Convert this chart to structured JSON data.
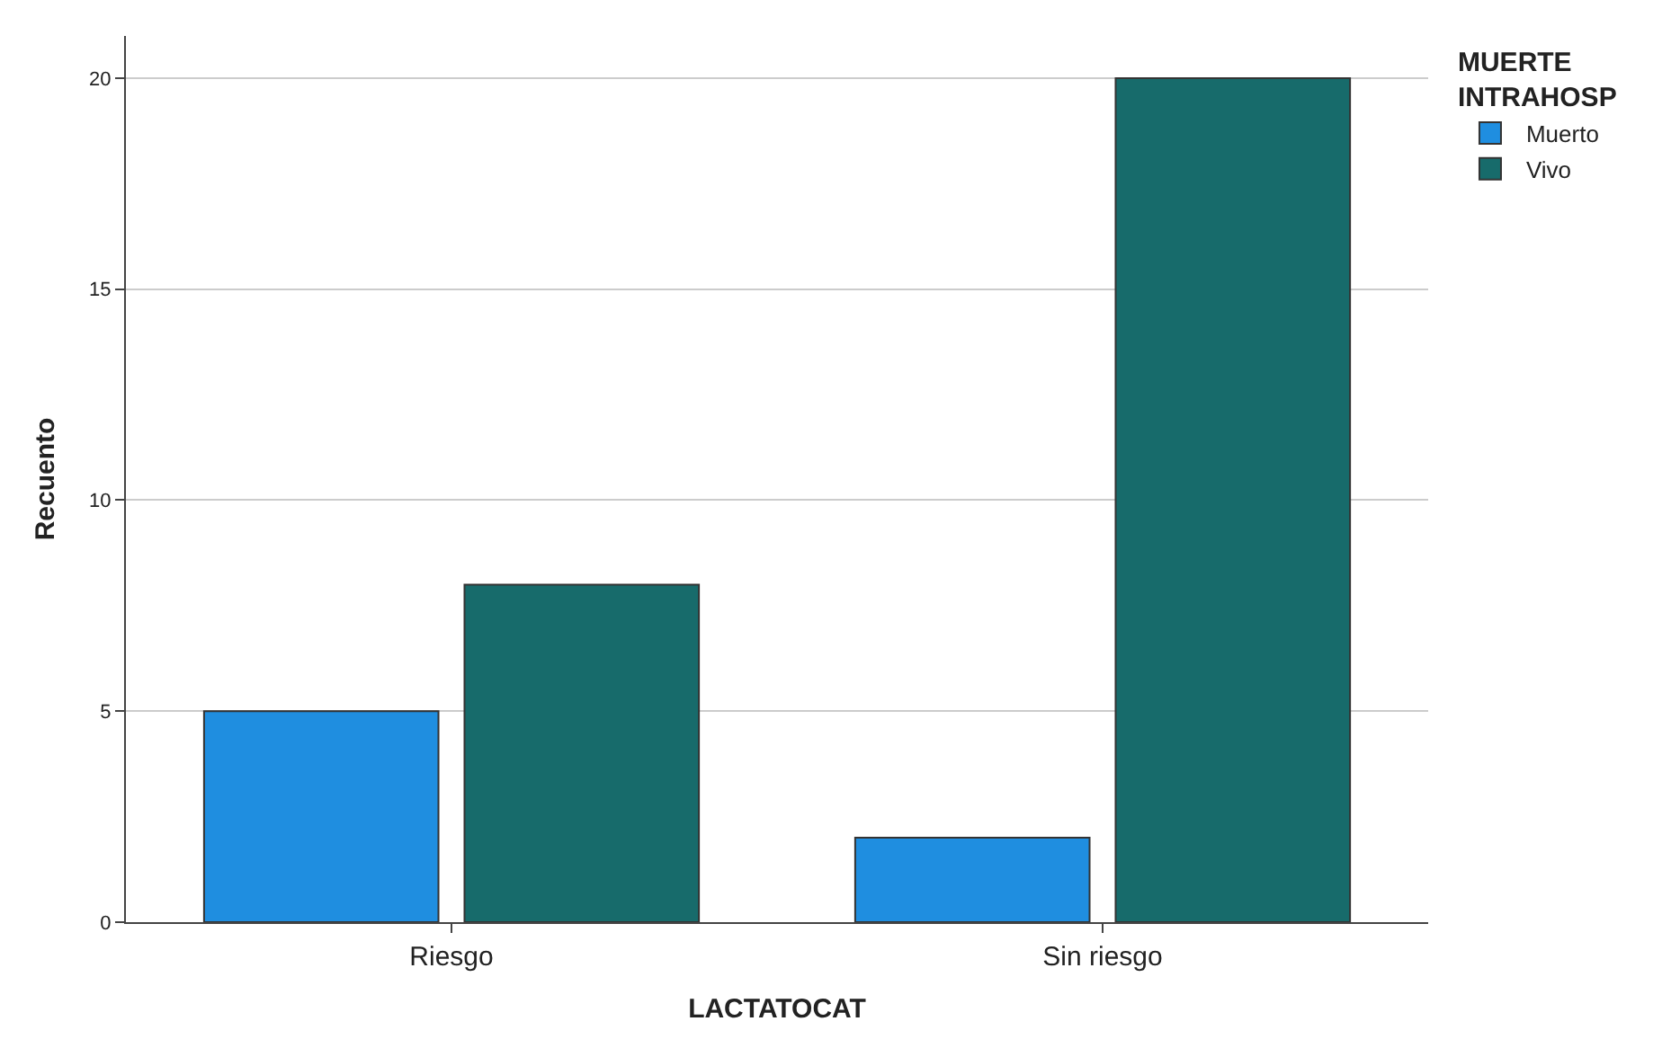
{
  "chart_data": {
    "type": "bar",
    "xlabel": "LACTATOCAT",
    "ylabel": "Recuento",
    "legend_title": "MUERTE INTRAHOSP",
    "categories": [
      "Riesgo",
      "Sin riesgo"
    ],
    "series": [
      {
        "name": "Muerto",
        "color": "#1f8ee0",
        "values": [
          5,
          2
        ]
      },
      {
        "name": "Vivo",
        "color": "#176b6b",
        "values": [
          8,
          20
        ]
      }
    ],
    "ylim": [
      0,
      21
    ],
    "yticks": [
      0,
      5,
      10,
      15,
      20
    ],
    "grid": "y",
    "legend": "top right"
  }
}
